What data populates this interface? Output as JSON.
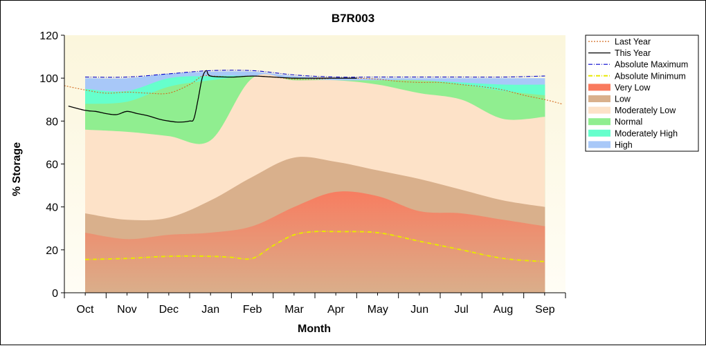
{
  "chart_data": {
    "type": "area",
    "title": "B7R003",
    "xlabel": "Month",
    "ylabel": "% Storage",
    "ylim": [
      0,
      120
    ],
    "yticks": [
      0,
      20,
      40,
      60,
      80,
      100,
      120
    ],
    "categories": [
      "Oct",
      "Nov",
      "Dec",
      "Jan",
      "Feb",
      "Mar",
      "Apr",
      "May",
      "Jun",
      "Jul",
      "Aug",
      "Sep"
    ],
    "grid": false,
    "legend_position": "top-right",
    "bands": [
      {
        "name": "Very Low",
        "color": "#f97a5e",
        "upper": [
          28,
          25,
          27,
          28,
          31,
          40,
          47,
          45,
          38,
          37,
          34,
          31
        ]
      },
      {
        "name": "Low",
        "color": "#d9b08c",
        "upper": [
          37,
          34,
          35,
          43,
          54,
          63,
          61,
          57,
          53,
          48,
          43,
          40
        ]
      },
      {
        "name": "Moderately Low",
        "color": "#fde2c8",
        "upper": [
          76,
          75,
          73,
          71,
          100,
          99,
          99,
          97,
          93,
          90,
          81,
          82
        ]
      },
      {
        "name": "Normal",
        "color": "#90ee90",
        "upper": [
          88,
          89,
          96,
          99,
          101,
          100,
          99,
          99,
          99,
          97,
          94,
          92
        ]
      },
      {
        "name": "Moderately High",
        "color": "#66ffcc",
        "upper": [
          95,
          94,
          100,
          101,
          101,
          100,
          99,
          99,
          99,
          98,
          97,
          97
        ]
      },
      {
        "name": "High",
        "color": "#a8c8f8",
        "upper": [
          100,
          100,
          102,
          103,
          103,
          101,
          100,
          100,
          100,
          100,
          100,
          100
        ]
      }
    ],
    "series": [
      {
        "name": "Last Year",
        "color": "#d2691e",
        "style": "dotted",
        "x": [
          -0.5,
          0,
          0.5,
          1,
          1.5,
          2,
          2.5,
          2.8,
          3,
          3.5,
          4,
          4.5,
          5,
          5.5,
          6,
          6.5,
          7,
          7.5,
          8,
          8.5,
          9,
          9.5,
          10,
          10.5,
          11,
          11.4
        ],
        "y": [
          96.5,
          94.5,
          93,
          93.5,
          93,
          93,
          97,
          101,
          101,
          100.5,
          101,
          100.5,
          99.5,
          99.5,
          100,
          100,
          99.5,
          98.5,
          98,
          98,
          97,
          96,
          94.5,
          92,
          90,
          88
        ]
      },
      {
        "name": "This Year",
        "color": "#000000",
        "style": "solid",
        "x": [
          -0.4,
          0,
          0.25,
          0.5,
          0.75,
          1,
          1.25,
          1.5,
          1.75,
          2,
          2.25,
          2.5,
          2.6,
          2.7,
          2.8,
          2.9,
          3,
          3.5,
          4,
          4.5,
          5,
          5.5,
          6,
          6.5
        ],
        "y": [
          87,
          85,
          84.5,
          83.5,
          83,
          84.5,
          83.5,
          82.5,
          81,
          80,
          79.5,
          80,
          81,
          90,
          100,
          103.5,
          101,
          100.5,
          101,
          100.5,
          100,
          100,
          100,
          100
        ]
      },
      {
        "name": "Absolute Maximum",
        "color": "#0000cd",
        "style": "dashdot",
        "x": [
          0,
          1,
          2,
          3,
          4,
          5,
          6,
          7,
          8,
          9,
          10,
          11
        ],
        "y": [
          100.5,
          100.5,
          102,
          103.5,
          103.5,
          101.5,
          100.5,
          100.5,
          100.5,
          100.5,
          100.5,
          101
        ]
      },
      {
        "name": "Absolute Minimum",
        "color": "#e8e800",
        "style": "dashdot",
        "x": [
          0,
          1,
          2,
          3,
          3.5,
          4,
          4.5,
          5,
          5.5,
          6,
          7,
          8,
          9,
          10,
          11
        ],
        "y": [
          15.5,
          16,
          17,
          17,
          16.5,
          16,
          22,
          27,
          28.5,
          28.5,
          28,
          24,
          20,
          16,
          14.5
        ]
      }
    ],
    "legend": [
      "Last Year",
      "This Year",
      "Absolute Maximum",
      "Absolute Minimum",
      "Very Low",
      "Low",
      "Moderately Low",
      "Normal",
      "Moderately High",
      "High"
    ]
  }
}
